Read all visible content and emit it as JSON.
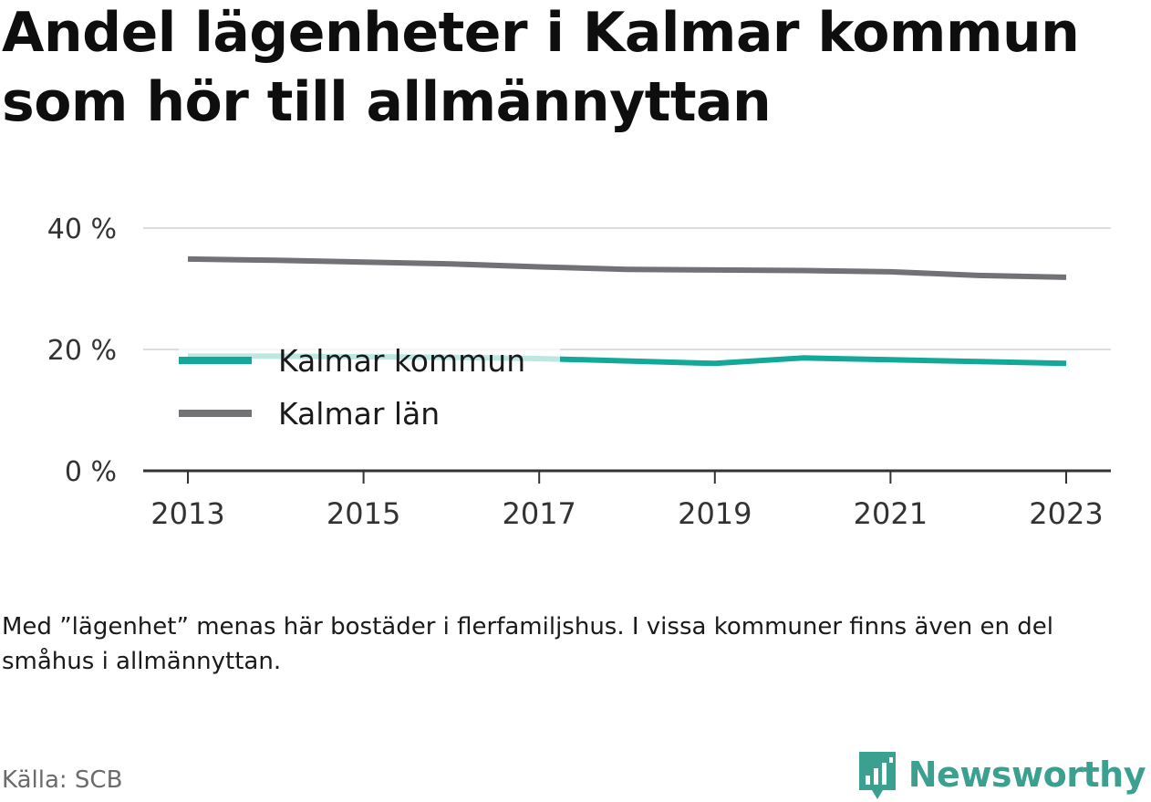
{
  "title": "Andel lägenheter i Kalmar kommun som hör till allmännyttan",
  "note": "Med ”lägenhet” menas här bostäder i flerfamiljshus. I vissa kommuner finns även en del småhus i allmännyttan.",
  "source": "Källa: SCB",
  "brand": {
    "name": "Newsworthy",
    "color": "#3aa08f"
  },
  "chart_data": {
    "type": "line",
    "title": "Andel lägenheter i Kalmar kommun som hör till allmännyttan",
    "xlabel": "",
    "ylabel": "",
    "x": [
      2013,
      2014,
      2015,
      2016,
      2017,
      2018,
      2019,
      2020,
      2021,
      2022,
      2023
    ],
    "xticks": [
      "2013",
      "2015",
      "2017",
      "2019",
      "2021",
      "2023"
    ],
    "yticks": [
      "0 %",
      "20 %",
      "40 %"
    ],
    "ylim": [
      0,
      40
    ],
    "grid": true,
    "legend_position": "inside-left",
    "series": [
      {
        "name": "Kalmar kommun",
        "color": "#14a89b",
        "values": [
          18.9,
          18.9,
          18.8,
          18.7,
          18.5,
          18.1,
          17.7,
          18.6,
          18.3,
          18.0,
          17.7
        ]
      },
      {
        "name": "Kalmar län",
        "color": "#717176",
        "values": [
          34.9,
          34.7,
          34.4,
          34.1,
          33.6,
          33.2,
          33.1,
          33.0,
          32.8,
          32.2,
          31.9
        ]
      }
    ]
  }
}
